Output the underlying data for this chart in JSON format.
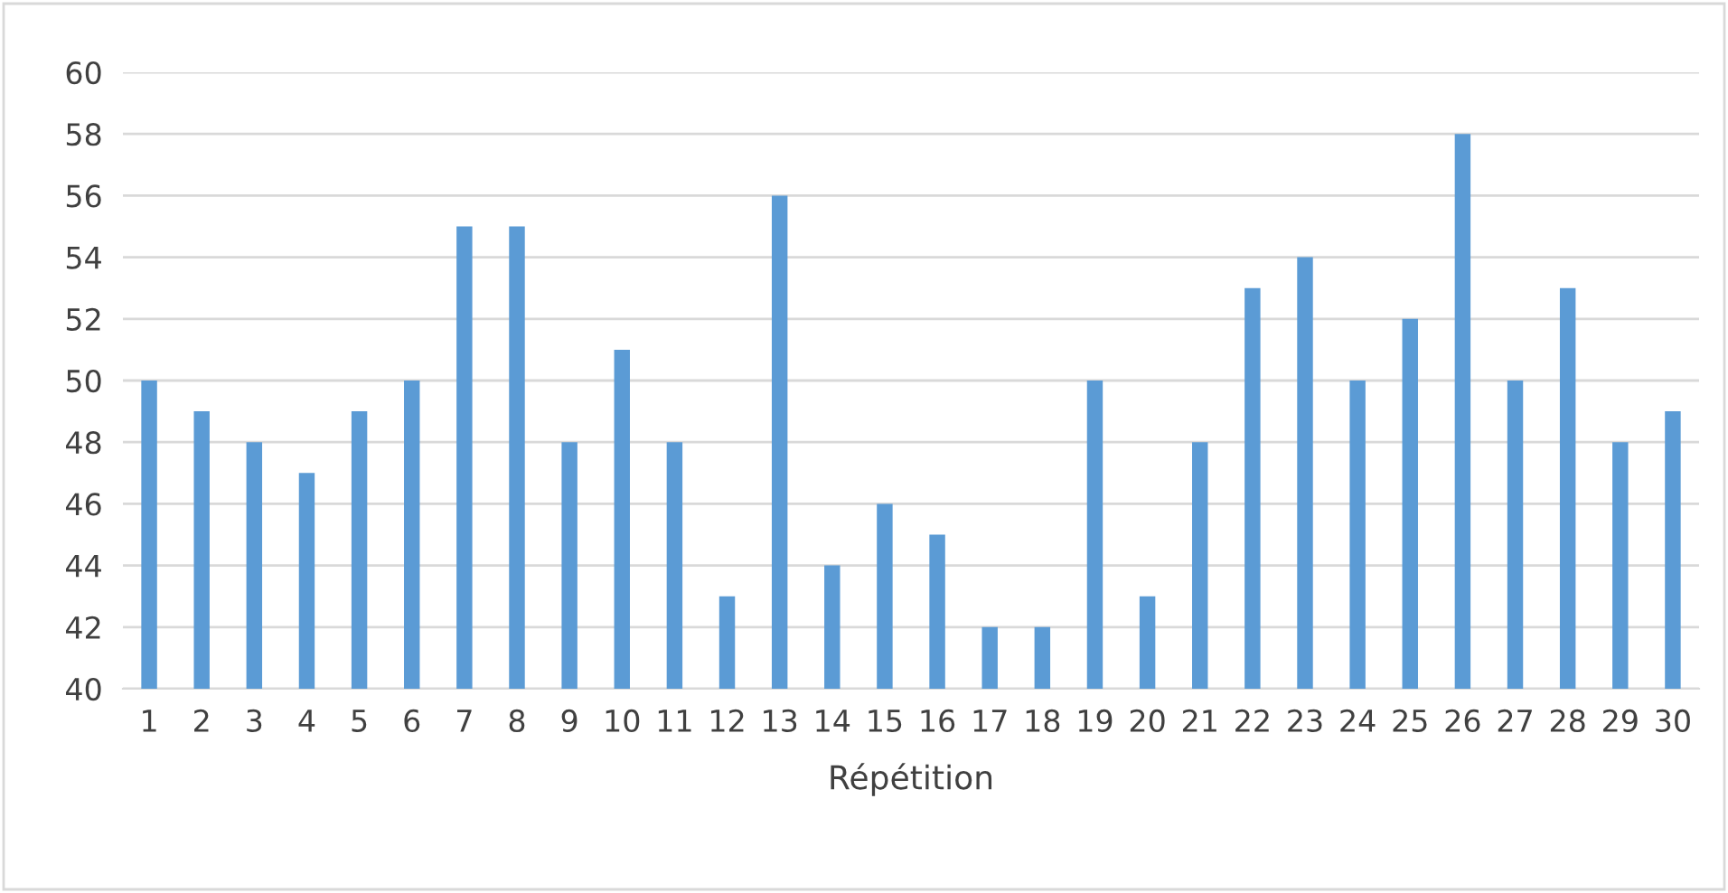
{
  "chart_data": {
    "type": "bar",
    "xlabel": "Répétition",
    "categories": [
      "1",
      "2",
      "3",
      "4",
      "5",
      "6",
      "7",
      "8",
      "9",
      "10",
      "11",
      "12",
      "13",
      "14",
      "15",
      "16",
      "17",
      "18",
      "19",
      "20",
      "21",
      "22",
      "23",
      "24",
      "25",
      "26",
      "27",
      "28",
      "29",
      "30"
    ],
    "values": [
      50,
      49,
      48,
      47,
      49,
      50,
      55,
      55,
      48,
      51,
      48,
      43,
      56,
      44,
      46,
      45,
      42,
      42,
      50,
      43,
      48,
      53,
      54,
      50,
      52,
      58,
      50,
      53,
      48,
      49
    ],
    "color": "#5b9bd5",
    "ylim": [
      40,
      60
    ],
    "yticks": [
      40,
      42,
      44,
      46,
      48,
      50,
      52,
      54,
      56,
      58,
      60
    ],
    "grid": "y"
  }
}
